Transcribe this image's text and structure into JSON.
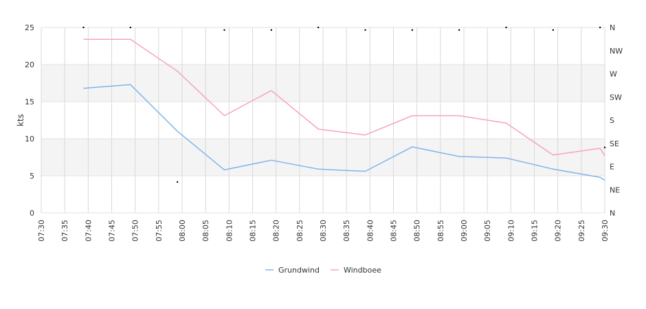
{
  "chart_data": {
    "type": "line",
    "ylabel": "kts",
    "ylim": [
      0,
      25
    ],
    "y_ticks": [
      "0",
      "5",
      "10",
      "15",
      "20",
      "25"
    ],
    "x_range": [
      "07:30",
      "09:30"
    ],
    "x_ticks": [
      "07:30",
      "07:35",
      "07:40",
      "07:45",
      "07:50",
      "07:55",
      "08:00",
      "08:05",
      "08:10",
      "08:15",
      "08:20",
      "08:25",
      "08:30",
      "08:35",
      "08:40",
      "08:45",
      "08:50",
      "08:55",
      "09:00",
      "09:05",
      "09:10",
      "09:15",
      "09:20",
      "09:25",
      "09:30"
    ],
    "direction_axis": {
      "labels": [
        "N",
        "NE",
        "E",
        "SE",
        "S",
        "SW",
        "W",
        "NW",
        "N"
      ],
      "range_degrees": [
        0,
        360
      ]
    },
    "grid": true,
    "legend_position": "bottom",
    "series": [
      {
        "name": "Grundwind",
        "color": "#7cb5ec",
        "x": [
          "07:39",
          "07:49",
          "07:59",
          "08:09",
          "08:19",
          "08:29",
          "08:39",
          "08:49",
          "08:59",
          "09:09",
          "09:19",
          "09:29",
          "09:30"
        ],
        "values": [
          16.8,
          17.3,
          11.0,
          5.8,
          7.1,
          5.9,
          5.6,
          8.9,
          7.6,
          7.4,
          5.9,
          4.8,
          4.4
        ]
      },
      {
        "name": "Windboee",
        "color": "#f7a1c4",
        "x": [
          "07:39",
          "07:49",
          "07:59",
          "08:09",
          "08:19",
          "08:29",
          "08:39",
          "08:49",
          "08:59",
          "09:09",
          "09:19",
          "09:29",
          "09:30"
        ],
        "values": [
          23.4,
          23.4,
          19.1,
          13.1,
          16.5,
          11.3,
          10.5,
          13.1,
          13.1,
          12.1,
          7.8,
          8.7,
          7.7
        ]
      }
    ],
    "direction_points": {
      "x": [
        "07:39",
        "07:49",
        "07:59",
        "08:09",
        "08:19",
        "08:29",
        "08:39",
        "08:49",
        "08:59",
        "09:09",
        "09:19",
        "09:29",
        "09:30"
      ],
      "degrees": [
        360,
        360,
        60,
        355,
        355,
        360,
        355,
        355,
        355,
        360,
        355,
        360,
        127
      ]
    }
  }
}
